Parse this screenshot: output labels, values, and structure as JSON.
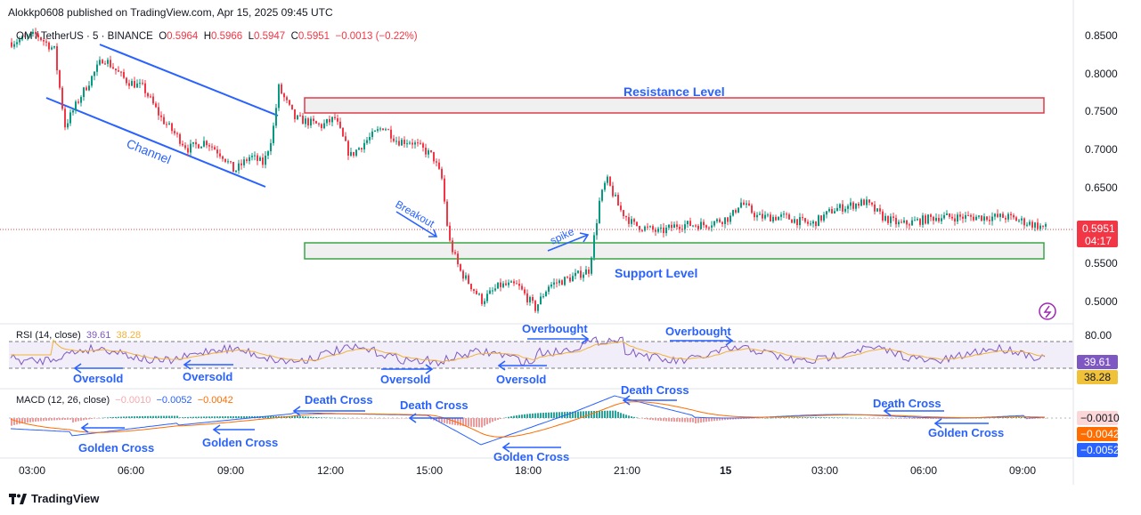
{
  "header": {
    "published": "Alokkp0608 published on TradingView.com, Apr 15, 2025 09:45 UTC"
  },
  "legend": {
    "symbol": "OM / TetherUS · 5 · BINANCE",
    "open_label": "O",
    "open": "0.5964",
    "high_label": "H",
    "high": "0.5966",
    "low_label": "L",
    "low": "0.5947",
    "close_label": "C",
    "close": "0.5951",
    "change": "−0.0013 (−0.22%)"
  },
  "price_axis": {
    "ticks": [
      "0.8500",
      "0.8000",
      "0.7500",
      "0.7000",
      "0.6500",
      "0.5500",
      "0.5000"
    ],
    "last_price": "0.5951",
    "countdown": "04:17"
  },
  "time_axis": {
    "ticks": [
      "03:00",
      "06:00",
      "09:00",
      "12:00",
      "15:00",
      "18:00",
      "21:00",
      "15",
      "03:00",
      "06:00",
      "09:00"
    ]
  },
  "annotations": {
    "resistance": "Resistance Level",
    "support": "Support Level",
    "channel": "Channel",
    "breakout": "Breakout",
    "spike": "spike",
    "oversold": [
      "Oversold",
      "Oversold",
      "Oversold",
      "Oversold"
    ],
    "overbought": [
      "Overbought",
      "Overbought"
    ],
    "death_cross": [
      "Death Cross",
      "Death Cross",
      "Death Cross",
      "Death Cross"
    ],
    "golden_cross": [
      "Golden Cross",
      "Golden Cross",
      "Golden Cross",
      "Golden Cross"
    ]
  },
  "rsi": {
    "label": "RSI (14, close)",
    "value": "39.61",
    "ma": "38.28",
    "axis_label": "80.00"
  },
  "macd": {
    "label": "MACD (12, 26, close)",
    "hist": "−0.0010",
    "macd": "−0.0052",
    "signal": "−0.0042"
  },
  "footer": {
    "brand": "TradingView"
  },
  "colors": {
    "up": "#089981",
    "down": "#f23645",
    "annot": "#2962ff",
    "resistance": "#e03a4a",
    "support": "#3aa546",
    "rsi": "#7e57c2",
    "rsi_ma": "#f0b23a",
    "macd": "#2962ff",
    "signal": "#ff6d00"
  },
  "chart_data": {
    "type": "candlestick",
    "symbol": "OM / TetherUS",
    "interval": "5",
    "exchange": "BINANCE",
    "ylim": [
      0.47,
      0.87
    ],
    "ohlc_last": {
      "open": 0.5964,
      "high": 0.5966,
      "low": 0.5947,
      "close": 0.5951
    },
    "levels": {
      "resistance": [
        0.75,
        0.77
      ],
      "support": [
        0.56,
        0.58
      ]
    },
    "price_path": {
      "x": [
        0,
        2,
        3,
        4,
        5,
        6,
        7,
        8,
        9,
        10,
        11,
        12,
        13,
        14,
        15,
        16,
        17,
        18,
        19,
        20,
        21,
        22,
        23,
        24,
        25,
        26,
        27,
        28,
        29,
        30,
        31,
        32,
        33,
        34
      ],
      "close": [
        0.85,
        0.84,
        0.83,
        0.72,
        0.78,
        0.8,
        0.82,
        0.79,
        0.78,
        0.74,
        0.72,
        0.7,
        0.71,
        0.69,
        0.71,
        0.7,
        0.68,
        0.7,
        0.69,
        0.67,
        0.68,
        0.71,
        0.78,
        0.74,
        0.73,
        0.72,
        0.74,
        0.7,
        0.72,
        0.71,
        0.72,
        0.7,
        0.66,
        0.58
      ]
    },
    "rsi": {
      "value": 39.61,
      "ma": 38.28,
      "upper": 80
    },
    "macd": {
      "macd": -0.0052,
      "signal": -0.0042,
      "hist": -0.001
    }
  }
}
